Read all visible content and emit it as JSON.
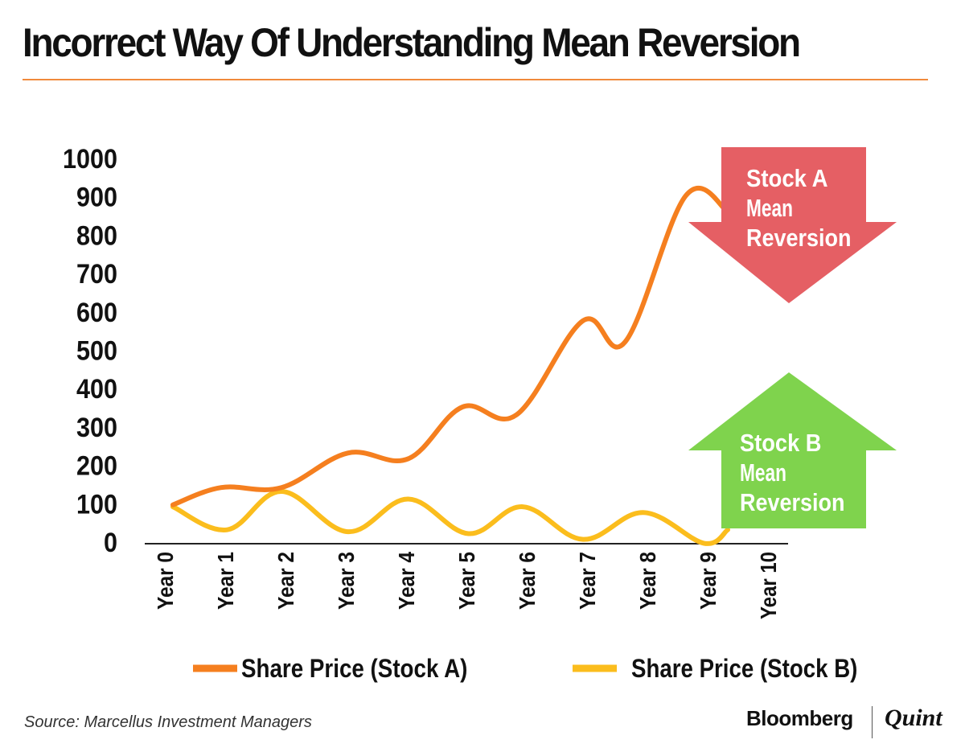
{
  "title": "Incorrect Way Of Understanding Mean Reversion",
  "source": "Source: Marcellus Investment Managers",
  "brand": {
    "primary": "Bloomberg",
    "secondary": "Quint"
  },
  "colors": {
    "stock_a": "#f57f1f",
    "stock_b": "#fbbd1d",
    "arrow_down": "#e55f64",
    "arrow_up": "#7fd34d",
    "rule": "#f08a3c"
  },
  "chart_data": {
    "type": "line",
    "categories": [
      "Year 0",
      "Year 1",
      "Year 2",
      "Year 3",
      "Year 4",
      "Year 5",
      "Year 6",
      "Year 7",
      "Year 8",
      "Year 9",
      "Year 10"
    ],
    "yticks": [
      0,
      100,
      200,
      300,
      400,
      500,
      600,
      700,
      800,
      900,
      1000
    ],
    "ylim": [
      0,
      1000
    ],
    "series": [
      {
        "name": "Share Price (Stock A)",
        "x": [
          0,
          0.8,
          1.8,
          2.9,
          3.9,
          4.8,
          5.7,
          6.8,
          7.5,
          8.5,
          9.2
        ],
        "values": [
          95,
          140,
          140,
          230,
          215,
          350,
          330,
          575,
          520,
          900,
          860
        ]
      },
      {
        "name": "Share Price (Stock B)",
        "x": [
          0,
          0.9,
          1.8,
          2.9,
          3.9,
          4.9,
          5.8,
          6.8,
          7.8,
          8.8,
          9.2
        ],
        "values": [
          90,
          30,
          130,
          25,
          110,
          20,
          90,
          5,
          75,
          -5,
          30
        ]
      }
    ],
    "annotations": [
      {
        "name": "arrow-down-stock-a",
        "lines": [
          "Stock A",
          "Mean",
          "Reversion"
        ]
      },
      {
        "name": "arrow-up-stock-b",
        "lines": [
          "Stock B",
          "Mean",
          "Reversion"
        ]
      }
    ],
    "legend": "bottom",
    "grid": false
  }
}
